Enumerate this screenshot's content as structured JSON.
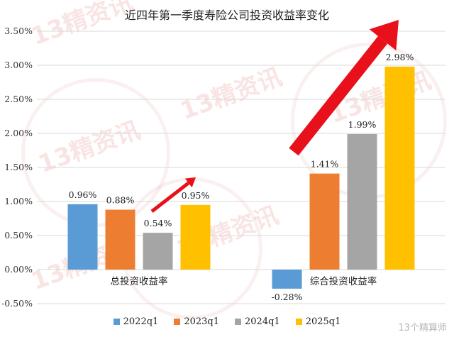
{
  "chart_data": {
    "type": "bar",
    "title": "近四年第一季度寿险公司投资收益率变化",
    "categories": [
      "总投资收益率",
      "综合投资收益率"
    ],
    "series": [
      {
        "name": "2022q1",
        "color": "#5B9BD5",
        "values": [
          0.96,
          -0.28
        ],
        "labels": [
          "0.96%",
          "-0.28%"
        ]
      },
      {
        "name": "2023q1",
        "color": "#ED7D31",
        "values": [
          0.88,
          1.41
        ],
        "labels": [
          "0.88%",
          "1.41%"
        ]
      },
      {
        "name": "2024q1",
        "color": "#A5A5A5",
        "values": [
          0.54,
          1.99
        ],
        "labels": [
          "0.54%",
          "1.99%"
        ]
      },
      {
        "name": "2025q1",
        "color": "#FFC000",
        "values": [
          0.95,
          2.98
        ],
        "labels": [
          "0.95%",
          "2.98%"
        ]
      }
    ],
    "ylim": [
      -0.5,
      3.5
    ],
    "yticks": [
      "-0.50%",
      "0.00%",
      "0.50%",
      "1.00%",
      "1.50%",
      "2.00%",
      "2.50%",
      "3.00%",
      "3.50%"
    ],
    "grid": true,
    "legend_position": "bottom",
    "annotation_color": "#E8101A"
  },
  "watermark": {
    "text": "13精资讯"
  },
  "source_mark": "13个精算师"
}
